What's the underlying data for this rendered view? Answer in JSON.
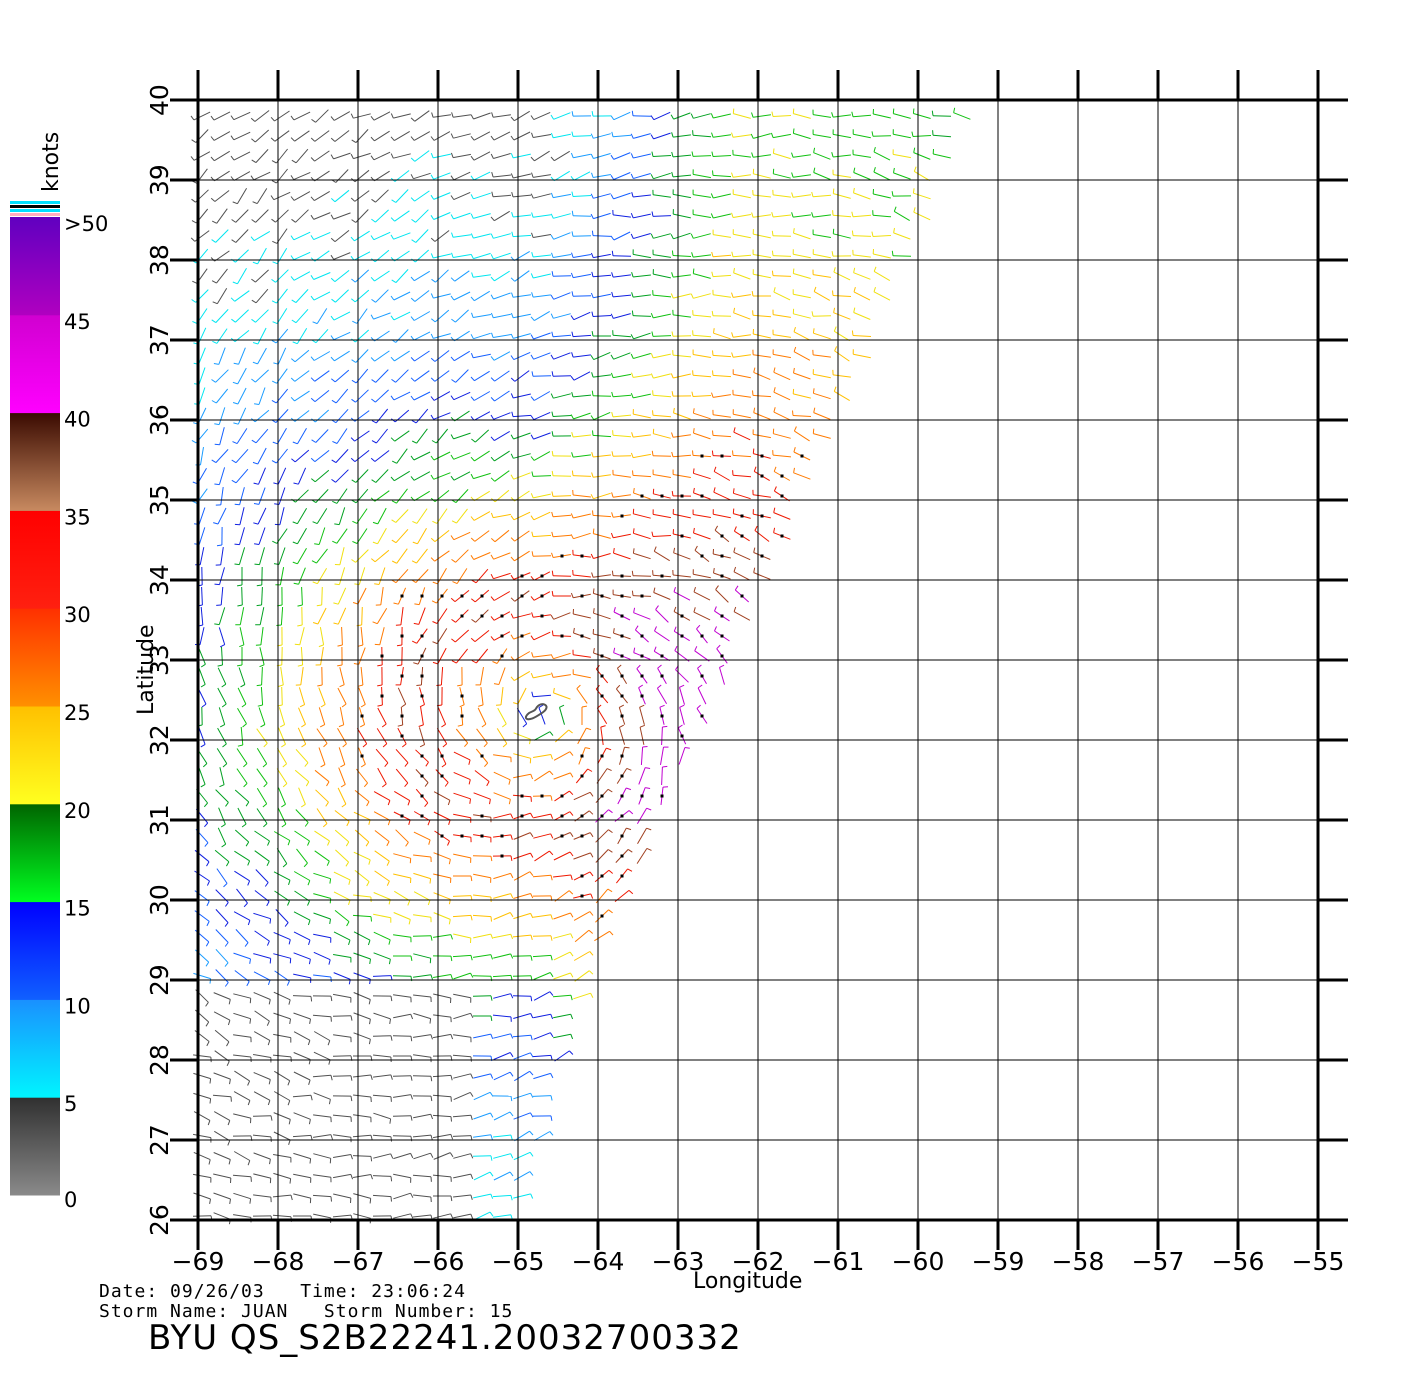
{
  "colorbar": {
    "unit": "knots",
    "labels": [
      ">50",
      "45",
      "40",
      "35",
      "30",
      "25",
      "20",
      "15",
      "10",
      "5",
      "0"
    ],
    "bands": [
      {
        "from": 0,
        "to": 5,
        "top": "#303030",
        "bottom": "#8a8a8a"
      },
      {
        "from": 5,
        "to": 10,
        "top": "#1a90ff",
        "bottom": "#00f5ff"
      },
      {
        "from": 10,
        "to": 15,
        "top": "#0000ff",
        "bottom": "#1060ff"
      },
      {
        "from": 15,
        "to": 20,
        "top": "#006400",
        "bottom": "#00ff20"
      },
      {
        "from": 20,
        "to": 25,
        "top": "#ffc000",
        "bottom": "#ffff20"
      },
      {
        "from": 25,
        "to": 30,
        "top": "#ff3000",
        "bottom": "#ff9000"
      },
      {
        "from": 30,
        "to": 35,
        "top": "#ff0000",
        "bottom": "#ff2010"
      },
      {
        "from": 35,
        "to": 40,
        "top": "#3a0a00",
        "bottom": "#c88a60"
      },
      {
        "from": 40,
        "to": 45,
        "top": "#d000d0",
        "bottom": "#ff00ff"
      },
      {
        "from": 45,
        "to": 50,
        "top": "#6000c0",
        "bottom": "#b000c0"
      }
    ],
    "top_stripes": [
      "#ffb0c0",
      "#00e0ff",
      "#000000",
      "#00e0ff"
    ]
  },
  "map": {
    "lon_ticks": [
      "−69",
      "−68",
      "−67",
      "−66",
      "−65",
      "−64",
      "−63",
      "−62",
      "−61",
      "−60",
      "−59",
      "−58",
      "−57",
      "−56",
      "−55"
    ],
    "lat_ticks": [
      "26",
      "27",
      "28",
      "29",
      "30",
      "31",
      "32",
      "33",
      "34",
      "35",
      "36",
      "37",
      "38",
      "39",
      "40"
    ],
    "lon_range": [
      -69,
      -55
    ],
    "lat_range": [
      26,
      40
    ],
    "xlabel": "Longitude",
    "ylabel": "Latitude",
    "storm_center": {
      "lon": -64.7,
      "lat": 32.3
    },
    "swath_edge": [
      [
        -59.3,
        40
      ],
      [
        -64.1,
        29.0
      ],
      [
        -65.0,
        26.0
      ]
    ]
  },
  "info": {
    "line1": "Date: 09/26/03   Time: 23:06:24",
    "line2": "Storm Name: JUAN   Storm Number: 15"
  },
  "file_title": "BYU  QS_S2B22241.20032700332"
}
